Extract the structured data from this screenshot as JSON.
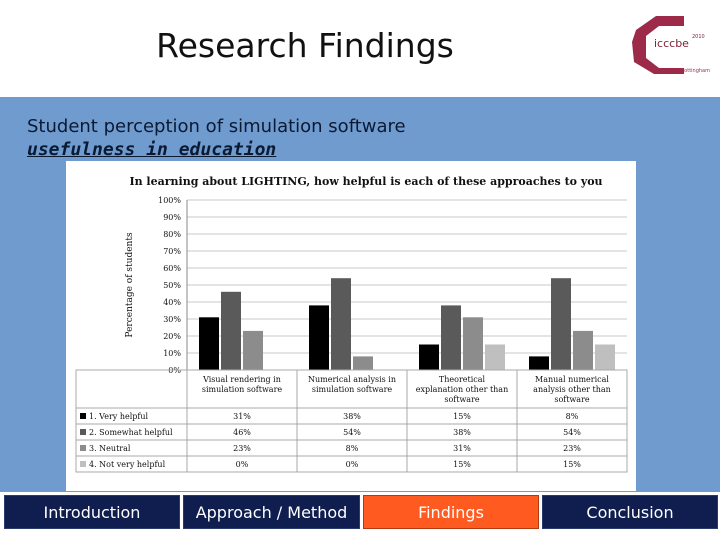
{
  "slide": {
    "title": "Research Findings",
    "subtitle_line1": "Student perception of simulation software",
    "subtitle_line2": "usefulness in education"
  },
  "logo": {
    "text": "icccbe",
    "superscript": "2010",
    "tagline": "nottingham"
  },
  "nav": {
    "items": [
      {
        "label": "Introduction",
        "active": false
      },
      {
        "label": "Approach / Method",
        "active": false
      },
      {
        "label": "Findings",
        "active": true
      },
      {
        "label": "Conclusion",
        "active": false
      }
    ]
  },
  "colors": {
    "band": "#6f9bcf",
    "nav_bg": "#0f1d4f",
    "nav_active": "#ff5a1f"
  },
  "chart_data": {
    "type": "bar",
    "title": "In learning about LIGHTING, how helpful is each of these approaches to you",
    "ylabel": "Percentage of students",
    "ylim": [
      0,
      100
    ],
    "yticks": [
      "0%",
      "10%",
      "20%",
      "30%",
      "40%",
      "50%",
      "60%",
      "70%",
      "80%",
      "90%",
      "100%"
    ],
    "grid": true,
    "categories": [
      "Visual rendering in simulation software",
      "Numerical analysis in simulation software",
      "Theoretical explanation other than software",
      "Manual numerical analysis other than software"
    ],
    "series": [
      {
        "name": "1. Very helpful",
        "color": "#000000",
        "values": [
          31,
          38,
          15,
          8
        ],
        "labels": [
          "31%",
          "38%",
          "15%",
          "8%"
        ]
      },
      {
        "name": "2. Somewhat helpful",
        "color": "#5a5a5a",
        "values": [
          46,
          54,
          38,
          54
        ],
        "labels": [
          "46%",
          "54%",
          "38%",
          "54%"
        ]
      },
      {
        "name": "3. Neutral",
        "color": "#8c8c8c",
        "values": [
          23,
          8,
          31,
          23
        ],
        "labels": [
          "23%",
          "8%",
          "31%",
          "23%"
        ]
      },
      {
        "name": "4. Not very helpful",
        "color": "#bfbfbf",
        "values": [
          0,
          0,
          15,
          15
        ],
        "labels": [
          "0%",
          "0%",
          "15%",
          "15%"
        ]
      }
    ],
    "legend": "table-below"
  }
}
